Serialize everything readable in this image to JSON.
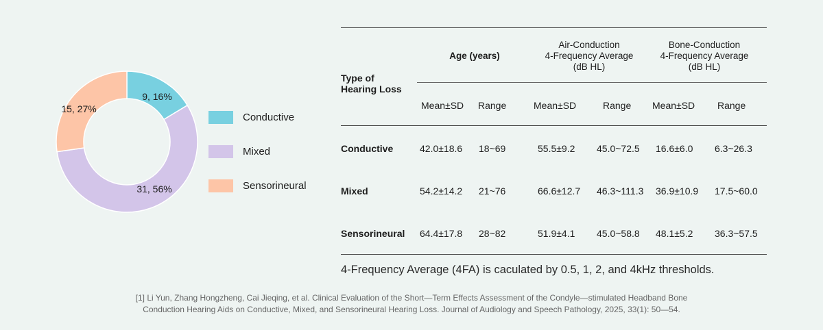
{
  "chart_data": {
    "type": "pie",
    "donut": true,
    "categories": [
      "Conductive",
      "Mixed",
      "Sensorineural"
    ],
    "values": [
      9,
      31,
      15
    ],
    "percents": [
      16,
      56,
      27
    ],
    "data_labels": [
      "9, 16%",
      "31, 56%",
      "15, 27%"
    ],
    "colors": [
      "#78d0e0",
      "#d3c5e9",
      "#fdc5a7"
    ],
    "legend": {
      "placement": "right",
      "entries": [
        "Conductive",
        "Mixed",
        "Sensorineural"
      ]
    }
  },
  "table": {
    "type_header": "Type of\nHearing Loss",
    "group_headers": [
      "Age (years)",
      "Air-Conduction\n4-Frequency Average\n(dB HL)",
      "Bone-Conduction\n4-Frequency Average\n(dB HL)"
    ],
    "sub_headers": [
      "Mean±SD",
      "Range",
      "Mean±SD",
      "Range",
      "Mean±SD",
      "Range"
    ],
    "rows": [
      {
        "label": "Conductive",
        "cells": [
          "42.0±18.6",
          "18~69",
          "55.5±9.2",
          "45.0~72.5",
          "16.6±6.0",
          "6.3~26.3"
        ]
      },
      {
        "label": "Mixed",
        "cells": [
          "54.2±14.2",
          "21~76",
          "66.6±12.7",
          "46.3~111.3",
          "36.9±10.9",
          "17.5~60.0"
        ]
      },
      {
        "label": "Sensorineural",
        "cells": [
          "64.4±17.8",
          "28~82",
          "51.9±4.1",
          "45.0~58.8",
          "48.1±5.2",
          "36.3~57.5"
        ]
      }
    ]
  },
  "note": "4-Frequency Average (4FA) is caculated by 0.5, 1, 2, and 4kHz thresholds.",
  "citation": [
    "[1] Li Yun, Zhang Hongzheng, Cai Jieqing, et al. Clinical Evaluation of the Short—Term Effects Assessment of the Condyle—stimulated Headband Bone",
    "Conduction Hearing Aids on Conductive, Mixed, and Sensorineural Hearing Loss. Journal of Audiology and Speech Pathology, 2025, 33(1): 50—54."
  ]
}
